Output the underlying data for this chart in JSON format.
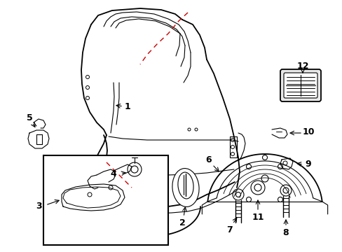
{
  "background_color": "#ffffff",
  "line_color": "#000000",
  "red_dashed_color": "#cc0000",
  "fig_width": 4.89,
  "fig_height": 3.6,
  "dpi": 100
}
